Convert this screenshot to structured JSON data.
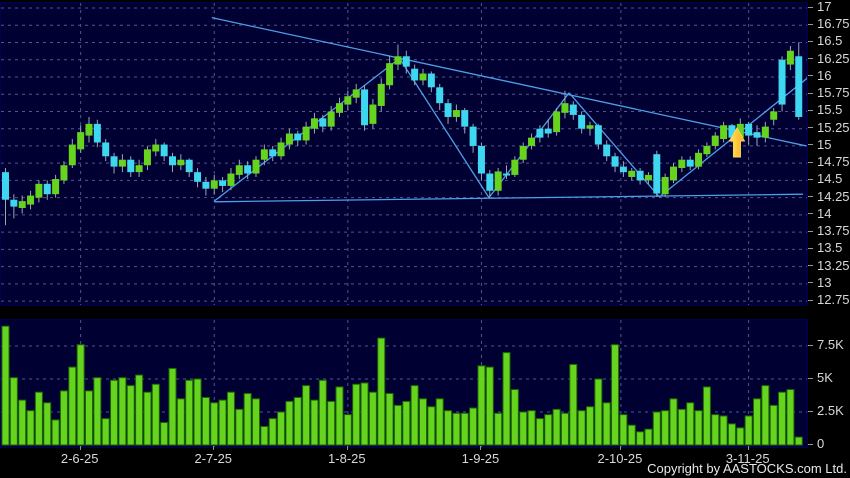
{
  "footer": {
    "copyright": "Copyright by AASTOCKS.com Ltd."
  },
  "colors": {
    "background": "#000000",
    "panel_background": "#000033",
    "grid": "#55558f",
    "up_candle": "#66d41f",
    "down_candle": "#3fd6ef",
    "wick": "#9aa8b4",
    "volume_bar": "#66d41f",
    "volume_bar_edge": "#1d6b00",
    "trendline": "#4d9fe8",
    "axis_text": "#d8d8d8",
    "arrow_fill_start": "#ffe95a",
    "arrow_fill_end": "#ffa51e",
    "arrow_stroke": "#f7d563"
  },
  "chart_data": {
    "type": "candlestick-with-volume",
    "title": "",
    "grid": "dashed",
    "price_axis": {
      "side": "right",
      "min": 12.75,
      "max": 17,
      "step": 0.25,
      "labels": [
        "17",
        "16.75",
        "16.5",
        "16.25",
        "16",
        "15.75",
        "15.5",
        "15.25",
        "15",
        "14.75",
        "14.5",
        "14.25",
        "14",
        "13.75",
        "13.5",
        "13.25",
        "13",
        "12.75"
      ]
    },
    "volume_axis": {
      "side": "right",
      "labels": [
        {
          "text": "7.5K",
          "value": 7.5
        },
        {
          "text": "5K",
          "value": 5
        },
        {
          "text": "2.5K",
          "value": 2.5
        },
        {
          "text": "0",
          "value": 0
        }
      ]
    },
    "x_axis": {
      "labels": [
        {
          "text": "2-6-25",
          "index": 9
        },
        {
          "text": "2-7-25",
          "index": 25
        },
        {
          "text": "1-8-25",
          "index": 41
        },
        {
          "text": "1-9-25",
          "index": 57
        },
        {
          "text": "2-10-25",
          "index": 73.7
        },
        {
          "text": "3-11-25",
          "index": 89
        }
      ]
    },
    "candles_format": [
      "open",
      "high",
      "low",
      "close",
      "bull(1=green,0=cyan)"
    ],
    "candles": [
      [
        14.62,
        14.68,
        13.85,
        14.22,
        0
      ],
      [
        14.22,
        14.3,
        13.95,
        14.12,
        0
      ],
      [
        14.1,
        14.28,
        14.02,
        14.2,
        1
      ],
      [
        14.15,
        14.35,
        14.08,
        14.28,
        1
      ],
      [
        14.25,
        14.5,
        14.18,
        14.45,
        1
      ],
      [
        14.45,
        14.5,
        14.22,
        14.3,
        0
      ],
      [
        14.3,
        14.58,
        14.25,
        14.52,
        1
      ],
      [
        14.5,
        14.78,
        14.45,
        14.72,
        1
      ],
      [
        14.72,
        15.1,
        14.68,
        15.02,
        1
      ],
      [
        14.95,
        15.3,
        14.9,
        15.2,
        1
      ],
      [
        15.15,
        15.42,
        15.05,
        15.32,
        1
      ],
      [
        15.32,
        15.38,
        14.98,
        15.05,
        0
      ],
      [
        15.05,
        15.1,
        14.78,
        14.85,
        0
      ],
      [
        14.85,
        14.9,
        14.6,
        14.7,
        0
      ],
      [
        14.7,
        14.88,
        14.62,
        14.8,
        1
      ],
      [
        14.8,
        14.85,
        14.55,
        14.62,
        0
      ],
      [
        14.62,
        14.8,
        14.55,
        14.72,
        1
      ],
      [
        14.72,
        15.0,
        14.65,
        14.95,
        1
      ],
      [
        14.92,
        15.1,
        14.85,
        15.02,
        1
      ],
      [
        15.02,
        15.05,
        14.78,
        14.85,
        0
      ],
      [
        14.85,
        14.9,
        14.62,
        14.72,
        0
      ],
      [
        14.72,
        14.88,
        14.65,
        14.8,
        1
      ],
      [
        14.8,
        14.82,
        14.55,
        14.62,
        0
      ],
      [
        14.62,
        14.68,
        14.4,
        14.48,
        0
      ],
      [
        14.48,
        14.55,
        14.28,
        14.38,
        0
      ],
      [
        14.38,
        14.58,
        14.3,
        14.5,
        1
      ],
      [
        14.5,
        14.55,
        14.33,
        14.42,
        0
      ],
      [
        14.42,
        14.68,
        14.36,
        14.6,
        1
      ],
      [
        14.58,
        14.8,
        14.52,
        14.72,
        1
      ],
      [
        14.72,
        14.78,
        14.52,
        14.6,
        0
      ],
      [
        14.6,
        14.85,
        14.55,
        14.8,
        1
      ],
      [
        14.8,
        15.02,
        14.72,
        14.95,
        1
      ],
      [
        14.95,
        15.0,
        14.78,
        14.85,
        0
      ],
      [
        14.85,
        15.12,
        14.8,
        15.05,
        1
      ],
      [
        15.02,
        15.25,
        14.95,
        15.18,
        1
      ],
      [
        15.18,
        15.22,
        15.0,
        15.08,
        0
      ],
      [
        15.08,
        15.35,
        15.02,
        15.28,
        1
      ],
      [
        15.25,
        15.48,
        15.18,
        15.4,
        1
      ],
      [
        15.4,
        15.45,
        15.2,
        15.28,
        0
      ],
      [
        15.28,
        15.58,
        15.22,
        15.5,
        1
      ],
      [
        15.48,
        15.7,
        15.42,
        15.62,
        1
      ],
      [
        15.6,
        15.8,
        15.52,
        15.72,
        1
      ],
      [
        15.7,
        15.9,
        15.62,
        15.82,
        1
      ],
      [
        15.82,
        15.88,
        15.22,
        15.3,
        0
      ],
      [
        15.32,
        15.68,
        15.25,
        15.6,
        1
      ],
      [
        15.58,
        15.98,
        15.5,
        15.9,
        1
      ],
      [
        15.88,
        16.3,
        15.82,
        16.2,
        1
      ],
      [
        16.18,
        16.47,
        16.1,
        16.3,
        1
      ],
      [
        16.3,
        16.38,
        16.05,
        16.15,
        0
      ],
      [
        16.12,
        16.18,
        15.88,
        15.95,
        0
      ],
      [
        15.95,
        16.12,
        15.88,
        16.05,
        1
      ],
      [
        16.05,
        16.08,
        15.78,
        15.85,
        0
      ],
      [
        15.85,
        15.9,
        15.52,
        15.62,
        0
      ],
      [
        15.62,
        15.68,
        15.32,
        15.42,
        0
      ],
      [
        15.42,
        15.6,
        15.35,
        15.52,
        1
      ],
      [
        15.52,
        15.55,
        15.18,
        15.28,
        0
      ],
      [
        15.28,
        15.32,
        14.9,
        15.0,
        0
      ],
      [
        15.0,
        15.05,
        14.5,
        14.6,
        0
      ],
      [
        14.6,
        14.65,
        14.25,
        14.35,
        0
      ],
      [
        14.35,
        14.68,
        14.28,
        14.63,
        1
      ],
      [
        14.6,
        14.72,
        14.52,
        14.58,
        0
      ],
      [
        14.58,
        14.85,
        14.55,
        14.8,
        1
      ],
      [
        14.8,
        15.05,
        14.75,
        15.0,
        1
      ],
      [
        15.0,
        15.18,
        14.95,
        15.12,
        1
      ],
      [
        15.12,
        15.3,
        15.05,
        15.25,
        0
      ],
      [
        15.25,
        15.38,
        15.12,
        15.18,
        0
      ],
      [
        15.2,
        15.55,
        15.15,
        15.5,
        1
      ],
      [
        15.48,
        15.8,
        15.4,
        15.62,
        1
      ],
      [
        15.6,
        15.65,
        15.38,
        15.45,
        0
      ],
      [
        15.45,
        15.5,
        15.18,
        15.25,
        0
      ],
      [
        15.25,
        15.35,
        15.15,
        15.3,
        1
      ],
      [
        15.3,
        15.32,
        14.95,
        15.02,
        0
      ],
      [
        15.02,
        15.08,
        14.78,
        14.85,
        0
      ],
      [
        14.85,
        14.9,
        14.62,
        14.7,
        0
      ],
      [
        14.7,
        14.78,
        14.55,
        14.62,
        0
      ],
      [
        14.55,
        14.68,
        14.5,
        14.64,
        1
      ],
      [
        14.64,
        14.68,
        14.44,
        14.5,
        0
      ],
      [
        14.5,
        14.62,
        14.45,
        14.58,
        1
      ],
      [
        14.88,
        14.93,
        14.26,
        14.31,
        0
      ],
      [
        14.3,
        14.6,
        14.26,
        14.55,
        1
      ],
      [
        14.5,
        14.75,
        14.46,
        14.7,
        1
      ],
      [
        14.68,
        14.85,
        14.62,
        14.8,
        1
      ],
      [
        14.8,
        14.85,
        14.65,
        14.7,
        0
      ],
      [
        14.7,
        14.95,
        14.66,
        14.9,
        1
      ],
      [
        14.88,
        15.05,
        14.84,
        15.0,
        1
      ],
      [
        15.0,
        15.2,
        14.95,
        15.15,
        1
      ],
      [
        15.1,
        15.35,
        15.05,
        15.3,
        1
      ],
      [
        15.3,
        15.32,
        15.05,
        15.12,
        0
      ],
      [
        15.12,
        15.4,
        15.08,
        15.32,
        1
      ],
      [
        15.32,
        15.35,
        15.02,
        15.15,
        0
      ],
      [
        15.2,
        15.3,
        15.0,
        15.12,
        0
      ],
      [
        15.12,
        15.35,
        15.05,
        15.28,
        1
      ],
      [
        15.38,
        15.55,
        15.3,
        15.5,
        1
      ],
      [
        15.6,
        16.3,
        15.5,
        16.25,
        0
      ],
      [
        16.18,
        16.45,
        16.1,
        16.38,
        1
      ],
      [
        16.3,
        16.5,
        15.38,
        15.42,
        0
      ]
    ],
    "volumes_k": [
      9.0,
      5.1,
      3.4,
      2.6,
      4.0,
      3.2,
      1.9,
      4.1,
      5.9,
      7.6,
      4.1,
      5.1,
      2.0,
      4.9,
      5.1,
      4.5,
      5.3,
      4.0,
      4.6,
      1.7,
      5.8,
      3.5,
      4.9,
      5.0,
      3.6,
      3.2,
      3.4,
      4.0,
      2.7,
      3.9,
      3.5,
      1.4,
      2.0,
      2.5,
      3.3,
      3.6,
      4.5,
      3.4,
      4.9,
      3.3,
      4.4,
      2.3,
      4.6,
      4.7,
      4.0,
      8.1,
      3.9,
      3.0,
      3.3,
      4.5,
      3.5,
      2.9,
      3.5,
      2.6,
      2.4,
      2.4,
      2.8,
      6.0,
      5.9,
      2.4,
      7.0,
      4.2,
      2.5,
      2.6,
      2.0,
      2.3,
      2.7,
      2.4,
      6.1,
      2.6,
      2.9,
      5.0,
      3.2,
      7.6,
      2.3,
      1.5,
      1.0,
      1.2,
      2.5,
      2.6,
      3.5,
      2.7,
      3.2,
      2.6,
      4.4,
      2.3,
      2.2,
      1.6,
      1.3,
      2.2,
      3.5,
      4.5,
      3.0,
      4.0,
      4.2,
      0.6
    ],
    "trendlines_format": [
      "index1",
      "price1",
      "index2",
      "price2"
    ],
    "trendlines": [
      [
        24.7,
        16.86,
        95.9,
        15.0
      ],
      [
        25.0,
        14.2,
        47.2,
        16.27
      ],
      [
        47.2,
        16.27,
        57.9,
        14.25
      ],
      [
        57.9,
        14.25,
        67.5,
        15.77
      ],
      [
        67.5,
        15.77,
        78.3,
        14.26
      ],
      [
        78.3,
        14.26,
        96.2,
        16.0
      ],
      [
        25.0,
        14.19,
        95.5,
        14.3
      ]
    ],
    "annotations": {
      "up_arrow": {
        "index": 87.6,
        "tip_price": 15.26
      }
    }
  }
}
